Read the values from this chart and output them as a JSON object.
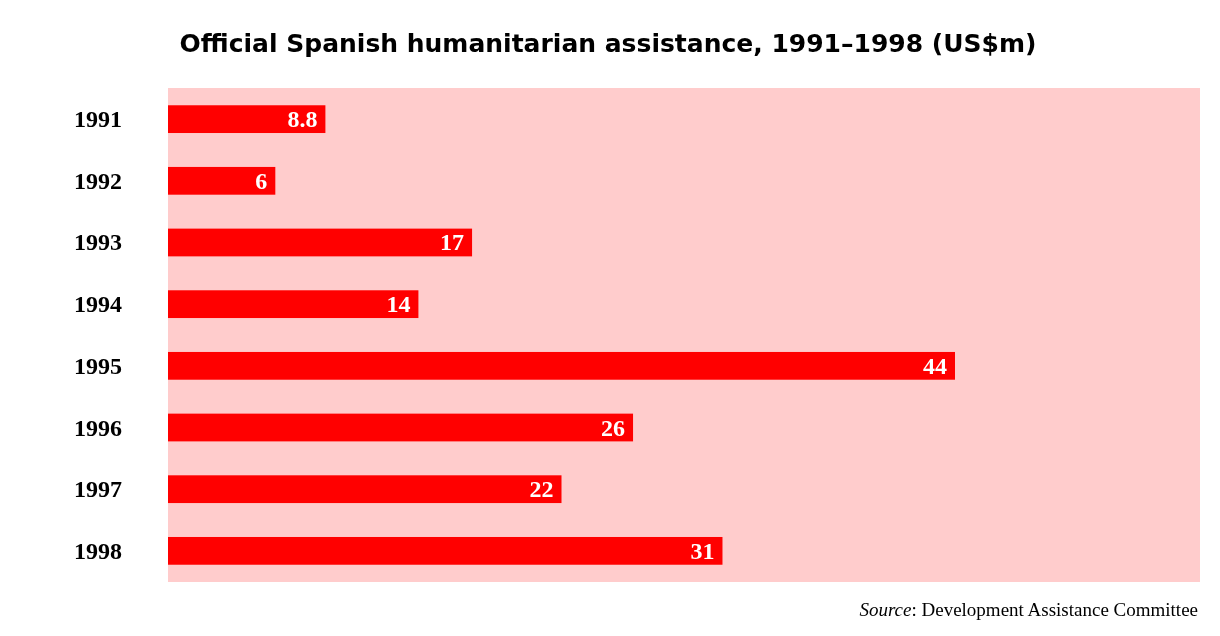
{
  "chart_data": {
    "type": "bar",
    "orientation": "horizontal",
    "title": "Official Spanish humanitarian assistance, 1991–1998 (US$m)",
    "categories": [
      "1991",
      "1992",
      "1993",
      "1994",
      "1995",
      "1996",
      "1997",
      "1998"
    ],
    "values": [
      8.8,
      6,
      17,
      14,
      44,
      26,
      22,
      31
    ],
    "color": "#ff0000",
    "data_labels": true,
    "annotations": [
      "Source: Development Assistance Committee"
    ]
  }
}
